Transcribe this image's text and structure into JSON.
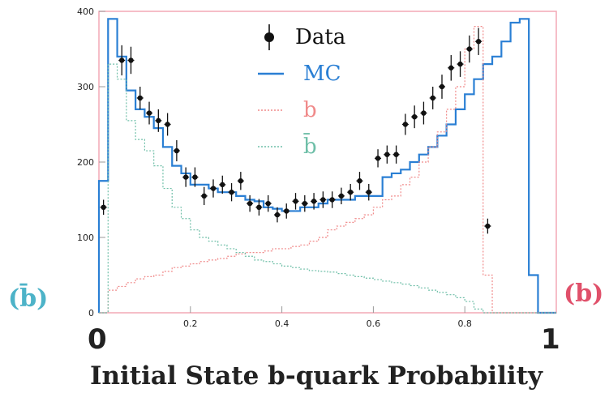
{
  "chart_data": {
    "type": "histogram",
    "title": "",
    "xlabel": "Initial State b-quark Probability",
    "ylabel": "",
    "xlim": [
      0,
      1
    ],
    "ylim": [
      0,
      400
    ],
    "x_ticks": [
      "0.2",
      "0.4",
      "0.6",
      "0.8"
    ],
    "x_end_labels": [
      "0",
      "1"
    ],
    "y_ticks": [
      "0",
      "100",
      "200",
      "300",
      "400"
    ],
    "grid": false,
    "legend_position": "top-center",
    "legend": [
      {
        "label": "Data",
        "color": "#111111",
        "style": "points"
      },
      {
        "label": "MC",
        "color": "#2a7fd4",
        "style": "solid"
      },
      {
        "label": "b",
        "color": "#f08a8a",
        "style": "dotted"
      },
      {
        "label": "b̄",
        "color": "#6fbfa8",
        "style": "dotted"
      }
    ],
    "side_labels": {
      "left": "(b̄)",
      "right": "(b)"
    },
    "side_label_colors": {
      "left": "#4db3c8",
      "right": "#e0506a"
    },
    "bin_edges": [
      0.0,
      0.02,
      0.04,
      0.06,
      0.08,
      0.1,
      0.12,
      0.14,
      0.16,
      0.18,
      0.2,
      0.22,
      0.24,
      0.26,
      0.28,
      0.3,
      0.32,
      0.34,
      0.36,
      0.38,
      0.4,
      0.42,
      0.44,
      0.46,
      0.48,
      0.5,
      0.52,
      0.54,
      0.56,
      0.58,
      0.6,
      0.62,
      0.64,
      0.66,
      0.68,
      0.7,
      0.72,
      0.74,
      0.76,
      0.78,
      0.8,
      0.82,
      0.84,
      0.86,
      0.88,
      0.9,
      0.92,
      0.94,
      0.96,
      0.98,
      1.0
    ],
    "series": [
      {
        "name": "Data",
        "x": [
          0.01,
          0.05,
          0.07,
          0.09,
          0.11,
          0.13,
          0.15,
          0.17,
          0.19,
          0.21,
          0.23,
          0.25,
          0.27,
          0.29,
          0.31,
          0.33,
          0.35,
          0.37,
          0.39,
          0.41,
          0.43,
          0.45,
          0.47,
          0.49,
          0.51,
          0.53,
          0.55,
          0.57,
          0.59,
          0.61,
          0.63,
          0.65,
          0.67,
          0.69,
          0.71,
          0.73,
          0.75,
          0.77,
          0.79,
          0.81,
          0.83,
          0.85,
          0.87,
          0.89,
          0.91,
          0.93,
          0.95,
          0.97
        ],
        "y": [
          140,
          335,
          335,
          285,
          265,
          255,
          250,
          215,
          180,
          180,
          155,
          165,
          170,
          160,
          175,
          145,
          140,
          145,
          130,
          135,
          148,
          145,
          148,
          150,
          150,
          155,
          160,
          175,
          160,
          205,
          210,
          210,
          250,
          260,
          265,
          285,
          300,
          325,
          330,
          350,
          360,
          115,
          0,
          0,
          0,
          0,
          0,
          0
        ],
        "yerr": [
          10,
          20,
          18,
          15,
          15,
          15,
          15,
          14,
          13,
          13,
          12,
          12,
          12,
          12,
          12,
          11,
          11,
          11,
          10,
          10,
          11,
          11,
          11,
          11,
          11,
          11,
          11,
          12,
          11,
          12,
          12,
          12,
          14,
          15,
          15,
          15,
          16,
          17,
          17,
          18,
          18,
          10,
          0,
          0,
          0,
          0,
          0,
          0
        ]
      },
      {
        "name": "MC",
        "values": [
          175,
          390,
          340,
          295,
          270,
          260,
          245,
          220,
          195,
          185,
          170,
          170,
          165,
          160,
          160,
          155,
          150,
          148,
          140,
          138,
          135,
          135,
          140,
          140,
          145,
          150,
          150,
          150,
          155,
          155,
          155,
          180,
          185,
          190,
          200,
          210,
          220,
          235,
          250,
          270,
          290,
          310,
          330,
          340,
          360,
          385,
          390,
          50,
          0,
          0
        ]
      },
      {
        "name": "b",
        "values": [
          0,
          30,
          35,
          40,
          45,
          48,
          50,
          55,
          60,
          62,
          65,
          68,
          70,
          72,
          75,
          78,
          80,
          80,
          82,
          85,
          85,
          88,
          90,
          95,
          100,
          110,
          115,
          120,
          125,
          130,
          140,
          150,
          155,
          170,
          180,
          200,
          220,
          240,
          270,
          300,
          350,
          380,
          50,
          0,
          0,
          0,
          0,
          0,
          0,
          0
        ]
      },
      {
        "name": "b̄",
        "values": [
          0,
          330,
          310,
          255,
          230,
          215,
          195,
          165,
          140,
          125,
          110,
          100,
          95,
          90,
          85,
          80,
          75,
          70,
          68,
          65,
          62,
          60,
          58,
          56,
          55,
          54,
          52,
          50,
          48,
          46,
          44,
          42,
          40,
          38,
          36,
          33,
          30,
          27,
          24,
          20,
          15,
          5,
          0,
          0,
          0,
          0,
          0,
          0,
          0,
          0
        ]
      }
    ]
  }
}
